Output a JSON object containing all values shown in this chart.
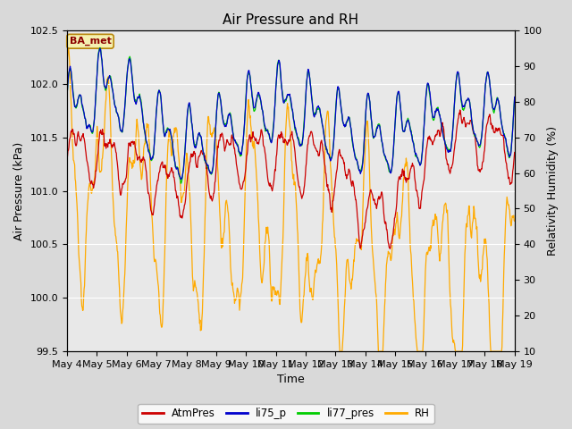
{
  "title": "Air Pressure and RH",
  "xlabel": "Time",
  "ylabel_left": "Air Pressure (kPa)",
  "ylabel_right": "Relativity Humidity (%)",
  "annotation": "BA_met",
  "ylim_left": [
    99.5,
    102.5
  ],
  "ylim_right": [
    10,
    100
  ],
  "yticks_left": [
    99.5,
    100.0,
    100.5,
    101.0,
    101.5,
    102.0,
    102.5
  ],
  "yticks_right": [
    10,
    20,
    30,
    40,
    50,
    60,
    70,
    80,
    90,
    100
  ],
  "xtick_labels": [
    "May 4",
    "May 5",
    "May 6",
    "May 7",
    "May 8",
    "May 9",
    "May 10",
    "May 11",
    "May 12",
    "May 13",
    "May 14",
    "May 15",
    "May 16",
    "May 17",
    "May 18",
    "May 19"
  ],
  "colors": {
    "AtmPres": "#cc0000",
    "li75_p": "#0000cc",
    "li77_pres": "#00cc00",
    "RH": "#ffaa00"
  },
  "legend_labels": [
    "AtmPres",
    "li75_p",
    "li77_pres",
    "RH"
  ],
  "bg_color": "#d9d9d9",
  "plot_bg_color": "#d3d3d3",
  "inner_bg_color": "#e8e8e8",
  "grid_color": "#ffffff",
  "title_fontsize": 11,
  "label_fontsize": 9,
  "tick_fontsize": 8
}
